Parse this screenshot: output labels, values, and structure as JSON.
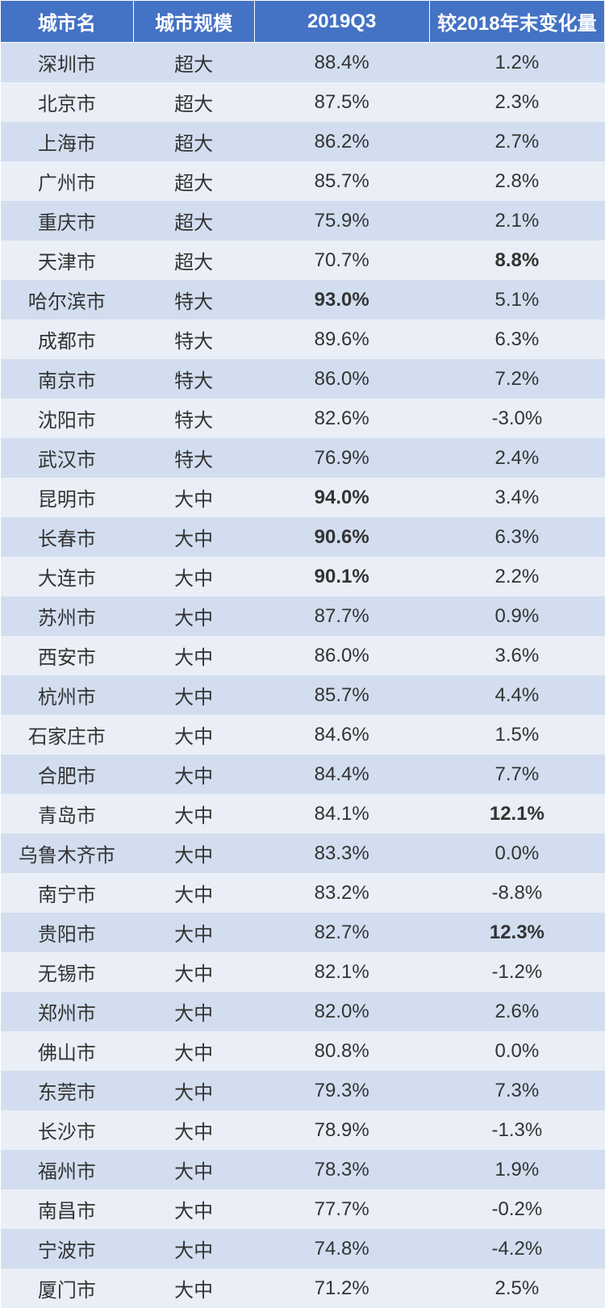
{
  "table": {
    "header_bg": "#4472c4",
    "header_color": "#ffffff",
    "row_odd_bg": "#d2deef",
    "row_even_bg": "#eaeff7",
    "text_color": "#333333",
    "fontsize": 24,
    "columns": [
      {
        "key": "city",
        "label": "城市名"
      },
      {
        "key": "scale",
        "label": "城市规模"
      },
      {
        "key": "q3",
        "label": "2019Q3"
      },
      {
        "key": "change",
        "label": "较2018年末变化量"
      }
    ],
    "rows": [
      {
        "city": "深圳市",
        "scale": "超大",
        "q3": "88.4%",
        "change": "1.2%"
      },
      {
        "city": "北京市",
        "scale": "超大",
        "q3": "87.5%",
        "change": "2.3%"
      },
      {
        "city": "上海市",
        "scale": "超大",
        "q3": "86.2%",
        "change": "2.7%"
      },
      {
        "city": "广州市",
        "scale": "超大",
        "q3": "85.7%",
        "change": "2.8%"
      },
      {
        "city": "重庆市",
        "scale": "超大",
        "q3": "75.9%",
        "change": "2.1%"
      },
      {
        "city": "天津市",
        "scale": "超大",
        "q3": "70.7%",
        "change": "8.8%",
        "change_bold": true
      },
      {
        "city": "哈尔滨市",
        "scale": "特大",
        "q3": "93.0%",
        "q3_bold": true,
        "change": "5.1%"
      },
      {
        "city": "成都市",
        "scale": "特大",
        "q3": "89.6%",
        "change": "6.3%"
      },
      {
        "city": "南京市",
        "scale": "特大",
        "q3": "86.0%",
        "change": "7.2%"
      },
      {
        "city": "沈阳市",
        "scale": "特大",
        "q3": "82.6%",
        "change": "-3.0%"
      },
      {
        "city": "武汉市",
        "scale": "特大",
        "q3": "76.9%",
        "change": "2.4%"
      },
      {
        "city": "昆明市",
        "scale": "大中",
        "q3": "94.0%",
        "q3_bold": true,
        "change": "3.4%"
      },
      {
        "city": "长春市",
        "scale": "大中",
        "q3": "90.6%",
        "q3_bold": true,
        "change": "6.3%"
      },
      {
        "city": "大连市",
        "scale": "大中",
        "q3": "90.1%",
        "q3_bold": true,
        "change": "2.2%"
      },
      {
        "city": "苏州市",
        "scale": "大中",
        "q3": "87.7%",
        "change": "0.9%"
      },
      {
        "city": "西安市",
        "scale": "大中",
        "q3": "86.0%",
        "change": "3.6%"
      },
      {
        "city": "杭州市",
        "scale": "大中",
        "q3": "85.7%",
        "change": "4.4%"
      },
      {
        "city": "石家庄市",
        "scale": "大中",
        "q3": "84.6%",
        "change": "1.5%"
      },
      {
        "city": "合肥市",
        "scale": "大中",
        "q3": "84.4%",
        "change": "7.7%"
      },
      {
        "city": "青岛市",
        "scale": "大中",
        "q3": "84.1%",
        "change": "12.1%",
        "change_bold": true
      },
      {
        "city": "乌鲁木齐市",
        "scale": "大中",
        "q3": "83.3%",
        "change": "0.0%"
      },
      {
        "city": "南宁市",
        "scale": "大中",
        "q3": "83.2%",
        "change": "-8.8%"
      },
      {
        "city": "贵阳市",
        "scale": "大中",
        "q3": "82.7%",
        "change": "12.3%",
        "change_bold": true
      },
      {
        "city": "无锡市",
        "scale": "大中",
        "q3": "82.1%",
        "change": "-1.2%"
      },
      {
        "city": "郑州市",
        "scale": "大中",
        "q3": "82.0%",
        "change": "2.6%"
      },
      {
        "city": "佛山市",
        "scale": "大中",
        "q3": "80.8%",
        "change": "0.0%"
      },
      {
        "city": "东莞市",
        "scale": "大中",
        "q3": "79.3%",
        "change": "7.3%"
      },
      {
        "city": "长沙市",
        "scale": "大中",
        "q3": "78.9%",
        "change": "-1.3%"
      },
      {
        "city": "福州市",
        "scale": "大中",
        "q3": "78.3%",
        "change": "1.9%"
      },
      {
        "city": "南昌市",
        "scale": "大中",
        "q3": "77.7%",
        "change": "-0.2%"
      },
      {
        "city": "宁波市",
        "scale": "大中",
        "q3": "74.8%",
        "change": "-4.2%"
      },
      {
        "city": "厦门市",
        "scale": "大中",
        "q3": "71.2%",
        "change": "2.5%"
      }
    ]
  }
}
